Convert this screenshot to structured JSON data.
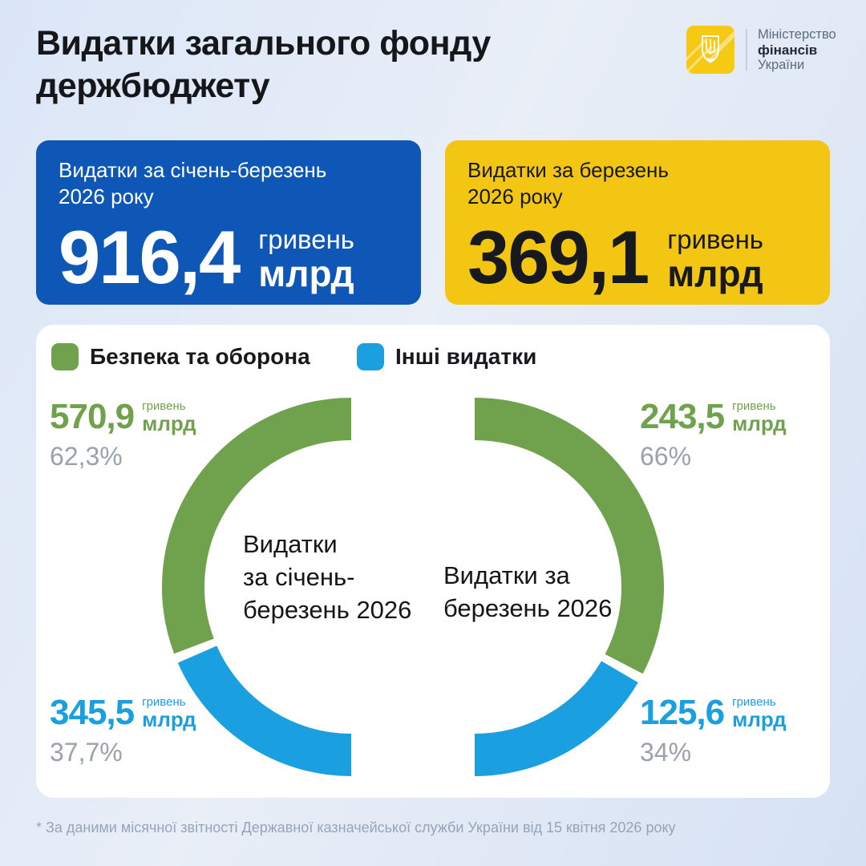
{
  "header": {
    "title_lines": [
      "Видатки загального фонду",
      "держбюджету"
    ],
    "ministry": {
      "line1": "Міністерство",
      "line2": "фінансів",
      "line3": "України",
      "emblem_color": "#f6c915"
    }
  },
  "summary_cards": [
    {
      "label_lines": [
        "Видатки за січень-березень",
        "2026 року"
      ],
      "value": "916,4",
      "unit_top": "гривень",
      "unit_bottom": "млрд",
      "bg_color": "#0e57b7",
      "text_color": "#ffffff"
    },
    {
      "label_lines": [
        "Видатки за березень",
        "2026 року"
      ],
      "value": "369,1",
      "unit_top": "гривень",
      "unit_bottom": "млрд",
      "bg_color": "#f4c614",
      "text_color": "#17191c"
    }
  ],
  "legend": [
    {
      "label": "Безпека та оборона",
      "color": "#70a24e"
    },
    {
      "label": "Інші видатки",
      "color": "#1a9fe0"
    }
  ],
  "chart_data": [
    {
      "type": "donut",
      "title": "Видатки за січень-березень 2026",
      "center_label_lines": [
        "Видатки",
        "за січень-",
        "березень 2026"
      ],
      "visible_half": "left",
      "slices": [
        {
          "name": "Безпека та оборона",
          "color": "#70a24e",
          "value_bln_uah": 570.9,
          "percent": 62.3,
          "value_display": "570,9",
          "unit_top": "гривень",
          "unit_bottom": "млрд",
          "percent_display": "62,3%"
        },
        {
          "name": "Інші видатки",
          "color": "#1a9fe0",
          "value_bln_uah": 345.5,
          "percent": 37.7,
          "value_display": "345,5",
          "unit_top": "гривень",
          "unit_bottom": "млрд",
          "percent_display": "37,7%"
        }
      ]
    },
    {
      "type": "donut",
      "title": "Видатки за березень 2026",
      "center_label_lines": [
        "Видатки за",
        "березень 2026"
      ],
      "visible_half": "right",
      "slices": [
        {
          "name": "Безпека та оборона",
          "color": "#70a24e",
          "value_bln_uah": 243.5,
          "percent": 66,
          "value_display": "243,5",
          "unit_top": "гривень",
          "unit_bottom": "млрд",
          "percent_display": "66%"
        },
        {
          "name": "Інші видатки",
          "color": "#1a9fe0",
          "value_bln_uah": 125.6,
          "percent": 34,
          "value_display": "125,6",
          "unit_top": "гривень",
          "unit_bottom": "млрд",
          "percent_display": "34%"
        }
      ]
    }
  ],
  "footnote": "* За даними місячної звітності Державної казначейської служби України від 15 квітня 2026 року"
}
